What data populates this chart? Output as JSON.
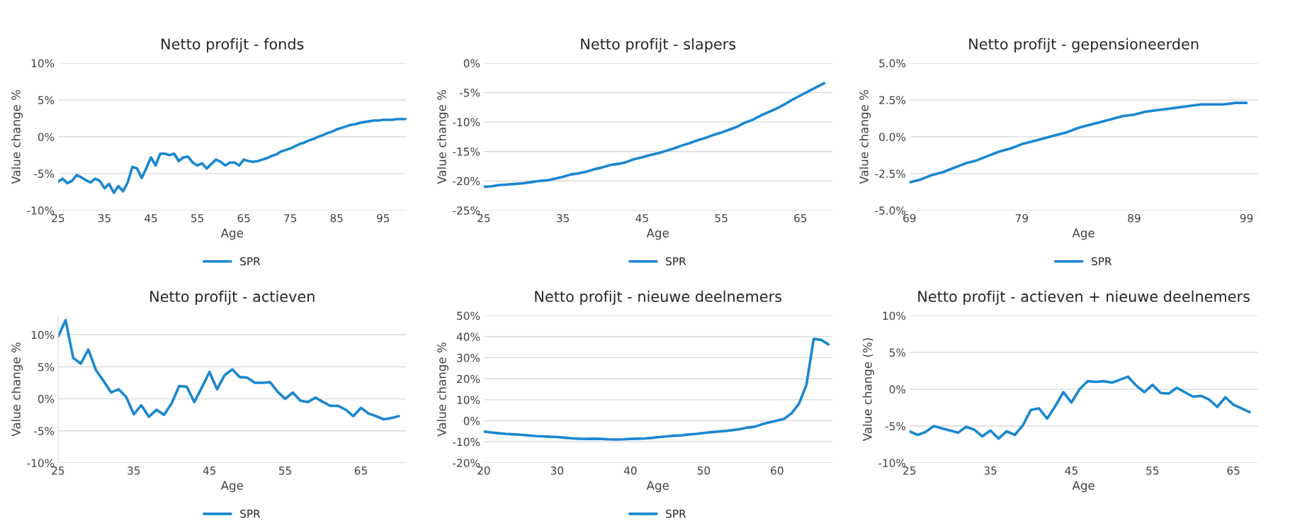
{
  "chart_data": [
    {
      "type": "line",
      "title": "Netto profijt - fonds",
      "xlabel": "Age",
      "ylabel": "Value change %",
      "grid": "y",
      "legend": "bottom",
      "marker": "none",
      "line_style": "solid",
      "xlim": [
        25,
        100
      ],
      "xticks": [
        25,
        35,
        45,
        55,
        65,
        75,
        85,
        95
      ],
      "ylim": [
        -10,
        10
      ],
      "yticks": [
        {
          "value": -10,
          "label": "-10%"
        },
        {
          "value": -5,
          "label": "-5%"
        },
        {
          "value": 0,
          "label": "0%"
        },
        {
          "value": 5,
          "label": "5%"
        },
        {
          "value": 10,
          "label": "10%"
        }
      ],
      "x": [
        25,
        26,
        27,
        28,
        29,
        30,
        31,
        32,
        33,
        34,
        35,
        36,
        37,
        38,
        39,
        40,
        41,
        42,
        43,
        44,
        45,
        46,
        47,
        48,
        49,
        50,
        51,
        52,
        53,
        54,
        55,
        56,
        57,
        58,
        59,
        60,
        61,
        62,
        63,
        64,
        65,
        66,
        67,
        68,
        69,
        70,
        71,
        72,
        73,
        74,
        75,
        76,
        77,
        78,
        79,
        80,
        81,
        82,
        83,
        84,
        85,
        86,
        87,
        88,
        89,
        90,
        91,
        92,
        93,
        94,
        95,
        96,
        97,
        98,
        99,
        100
      ],
      "series": [
        {
          "name": "SPR",
          "color": "#1a87d0",
          "values": [
            -6.1,
            -5.7,
            -6.3,
            -6.0,
            -5.2,
            -5.5,
            -5.9,
            -6.2,
            -5.7,
            -6.0,
            -7.0,
            -6.4,
            -7.6,
            -6.7,
            -7.4,
            -6.2,
            -4.1,
            -4.3,
            -5.6,
            -4.3,
            -2.8,
            -3.9,
            -2.3,
            -2.3,
            -2.5,
            -2.3,
            -3.3,
            -2.8,
            -2.7,
            -3.5,
            -3.9,
            -3.6,
            -4.3,
            -3.7,
            -3.1,
            -3.4,
            -3.9,
            -3.5,
            -3.5,
            -3.9,
            -3.1,
            -3.3,
            -3.4,
            -3.3,
            -3.1,
            -2.9,
            -2.6,
            -2.4,
            -2.0,
            -1.8,
            -1.6,
            -1.3,
            -1.0,
            -0.8,
            -0.5,
            -0.3,
            0.0,
            0.2,
            0.5,
            0.7,
            1.0,
            1.2,
            1.4,
            1.6,
            1.7,
            1.9,
            2.0,
            2.1,
            2.2,
            2.2,
            2.3,
            2.3,
            2.3,
            2.4,
            2.4,
            2.4
          ]
        }
      ]
    },
    {
      "type": "line",
      "title": "Netto profijt - slapers",
      "xlabel": "Age",
      "ylabel": "Value change %",
      "grid": "y",
      "legend": "bottom",
      "marker": "none",
      "line_style": "solid",
      "xlim": [
        25,
        69
      ],
      "xticks": [
        25,
        35,
        45,
        55,
        65
      ],
      "ylim": [
        -25,
        0
      ],
      "yticks": [
        {
          "value": -25,
          "label": "-25%"
        },
        {
          "value": -20,
          "label": "-20%"
        },
        {
          "value": -15,
          "label": "-15%"
        },
        {
          "value": -10,
          "label": "-10%"
        },
        {
          "value": -5,
          "label": "-5%"
        },
        {
          "value": 0,
          "label": "0%"
        }
      ],
      "x": [
        25,
        26,
        27,
        28,
        29,
        30,
        31,
        32,
        33,
        34,
        35,
        36,
        37,
        38,
        39,
        40,
        41,
        42,
        43,
        44,
        45,
        46,
        47,
        48,
        49,
        50,
        51,
        52,
        53,
        54,
        55,
        56,
        57,
        58,
        59,
        60,
        61,
        62,
        63,
        64,
        65,
        66,
        67,
        68
      ],
      "series": [
        {
          "name": "SPR",
          "color": "#1a87d0",
          "values": [
            -21.0,
            -20.9,
            -20.7,
            -20.6,
            -20.5,
            -20.4,
            -20.2,
            -20.0,
            -19.9,
            -19.6,
            -19.3,
            -18.9,
            -18.7,
            -18.4,
            -18.0,
            -17.7,
            -17.3,
            -17.1,
            -16.8,
            -16.3,
            -16.0,
            -15.6,
            -15.3,
            -14.9,
            -14.5,
            -14.0,
            -13.6,
            -13.1,
            -12.7,
            -12.2,
            -11.8,
            -11.3,
            -10.8,
            -10.1,
            -9.6,
            -8.9,
            -8.3,
            -7.7,
            -7.0,
            -6.2,
            -5.5,
            -4.8,
            -4.1,
            -3.4
          ]
        }
      ]
    },
    {
      "type": "line",
      "title": "Netto profijt - gepensioneerden",
      "xlabel": "Age",
      "ylabel": "Value change %",
      "grid": "y",
      "legend": "bottom",
      "marker": "none",
      "line_style": "solid",
      "xlim": [
        69,
        100
      ],
      "xticks": [
        69,
        79,
        89,
        99
      ],
      "ylim": [
        -5,
        5
      ],
      "yticks": [
        {
          "value": -5,
          "label": "-5.0%"
        },
        {
          "value": -2.5,
          "label": "-2.5%"
        },
        {
          "value": 0,
          "label": "0.0%"
        },
        {
          "value": 2.5,
          "label": "2.5%"
        },
        {
          "value": 5,
          "label": "5.0%"
        }
      ],
      "x": [
        69,
        70,
        71,
        72,
        73,
        74,
        75,
        76,
        77,
        78,
        79,
        80,
        81,
        82,
        83,
        84,
        85,
        86,
        87,
        88,
        89,
        90,
        91,
        92,
        93,
        94,
        95,
        96,
        97,
        98,
        99
      ],
      "series": [
        {
          "name": "SPR",
          "color": "#1a87d0",
          "values": [
            -3.1,
            -2.9,
            -2.6,
            -2.4,
            -2.1,
            -1.8,
            -1.6,
            -1.3,
            -1.0,
            -0.8,
            -0.5,
            -0.3,
            -0.1,
            0.1,
            0.3,
            0.6,
            0.8,
            1.0,
            1.2,
            1.4,
            1.5,
            1.7,
            1.8,
            1.9,
            2.0,
            2.1,
            2.2,
            2.2,
            2.2,
            2.3,
            2.3
          ]
        }
      ]
    },
    {
      "type": "line",
      "title": "Netto profijt - actieven",
      "xlabel": "Age",
      "ylabel": "Value change %",
      "grid": "y",
      "legend": "bottom",
      "marker": "none",
      "line_style": "solid",
      "xlim": [
        25,
        71
      ],
      "xticks": [
        25,
        35,
        45,
        55,
        65
      ],
      "ylim": [
        -10,
        13
      ],
      "yticks": [
        {
          "value": -10,
          "label": "-10%"
        },
        {
          "value": -5,
          "label": "-5%"
        },
        {
          "value": 0,
          "label": "0%"
        },
        {
          "value": 5,
          "label": "5%"
        },
        {
          "value": 10,
          "label": "10%"
        }
      ],
      "x": [
        25,
        26,
        27,
        28,
        29,
        30,
        31,
        32,
        33,
        34,
        35,
        36,
        37,
        38,
        39,
        40,
        41,
        42,
        43,
        44,
        45,
        46,
        47,
        48,
        49,
        50,
        51,
        52,
        53,
        54,
        55,
        56,
        57,
        58,
        59,
        60,
        61,
        62,
        63,
        64,
        65,
        66,
        67,
        68,
        69,
        70
      ],
      "series": [
        {
          "name": "SPR",
          "color": "#1a87d0",
          "values": [
            9.7,
            12.3,
            6.4,
            5.5,
            7.7,
            4.5,
            2.8,
            1.0,
            1.5,
            0.3,
            -2.4,
            -1.0,
            -2.8,
            -1.7,
            -2.5,
            -0.7,
            2.0,
            1.9,
            -0.5,
            1.8,
            4.2,
            1.5,
            3.7,
            4.6,
            3.4,
            3.3,
            2.5,
            2.5,
            2.6,
            1.1,
            0.0,
            1.0,
            -0.3,
            -0.5,
            0.2,
            -0.5,
            -1.1,
            -1.1,
            -1.7,
            -2.7,
            -1.4,
            -2.3,
            -2.7,
            -3.2,
            -3.0,
            -2.7
          ]
        }
      ]
    },
    {
      "type": "line",
      "title": "Netto profijt - nieuwe deelnemers",
      "xlabel": "Age",
      "ylabel": "Value change %",
      "grid": "y",
      "legend": "bottom",
      "marker": "none",
      "line_style": "solid",
      "xlim": [
        20,
        67.5
      ],
      "xticks": [
        20,
        30,
        40,
        50,
        60
      ],
      "ylim": [
        -20,
        50
      ],
      "yticks": [
        {
          "value": -20,
          "label": "-20%"
        },
        {
          "value": -10,
          "label": "-10%"
        },
        {
          "value": 0,
          "label": "0%"
        },
        {
          "value": 10,
          "label": "10%"
        },
        {
          "value": 20,
          "label": "20%"
        },
        {
          "value": 30,
          "label": "30%"
        },
        {
          "value": 40,
          "label": "40%"
        },
        {
          "value": 50,
          "label": "50%"
        }
      ],
      "x": [
        20,
        21,
        22,
        23,
        24,
        25,
        26,
        27,
        28,
        29,
        30,
        31,
        32,
        33,
        34,
        35,
        36,
        37,
        38,
        39,
        40,
        41,
        42,
        43,
        44,
        45,
        46,
        47,
        48,
        49,
        50,
        51,
        52,
        53,
        54,
        55,
        56,
        57,
        58,
        59,
        60,
        61,
        62,
        63,
        64,
        65,
        66,
        67
      ],
      "series": [
        {
          "name": "SPR",
          "color": "#1a87d0",
          "values": [
            -5.1,
            -5.5,
            -5.9,
            -6.2,
            -6.4,
            -6.6,
            -6.9,
            -7.2,
            -7.4,
            -7.6,
            -7.7,
            -8.0,
            -8.3,
            -8.5,
            -8.6,
            -8.5,
            -8.6,
            -8.8,
            -8.9,
            -8.8,
            -8.6,
            -8.5,
            -8.4,
            -8.1,
            -7.7,
            -7.4,
            -7.1,
            -6.9,
            -6.5,
            -6.2,
            -5.8,
            -5.4,
            -5.1,
            -4.8,
            -4.4,
            -3.9,
            -3.2,
            -2.8,
            -1.6,
            -0.7,
            0.1,
            1.0,
            3.6,
            8.2,
            17.0,
            38.9,
            38.5,
            36.3
          ]
        }
      ]
    },
    {
      "type": "line",
      "title": "Netto profijt - actieven + nieuwe deelnemers",
      "xlabel": "Age",
      "ylabel": "Value change (%)",
      "grid": "y",
      "marker": "none",
      "line_style": "solid",
      "xlim": [
        25,
        68
      ],
      "xticks": [
        25,
        35,
        45,
        55,
        65
      ],
      "ylim": [
        -10,
        10
      ],
      "yticks": [
        {
          "value": -10,
          "label": "-10%"
        },
        {
          "value": -5,
          "label": "-5%"
        },
        {
          "value": 0,
          "label": "0%"
        },
        {
          "value": 5,
          "label": "5%"
        },
        {
          "value": 10,
          "label": "10%"
        }
      ],
      "x": [
        25,
        26,
        27,
        28,
        29,
        30,
        31,
        32,
        33,
        34,
        35,
        36,
        37,
        38,
        39,
        40,
        41,
        42,
        43,
        44,
        45,
        46,
        47,
        48,
        49,
        50,
        51,
        52,
        53,
        54,
        55,
        56,
        57,
        58,
        59,
        60,
        61,
        62,
        63,
        64,
        65,
        66,
        67
      ],
      "series": [
        {
          "color": "#1a87d0",
          "values": [
            -5.7,
            -6.2,
            -5.8,
            -5.0,
            -5.3,
            -5.6,
            -5.9,
            -5.1,
            -5.5,
            -6.4,
            -5.6,
            -6.7,
            -5.7,
            -6.2,
            -4.9,
            -2.8,
            -2.6,
            -4.0,
            -2.3,
            -0.4,
            -1.8,
            0.0,
            1.1,
            1.0,
            1.1,
            0.9,
            1.3,
            1.7,
            0.5,
            -0.4,
            0.6,
            -0.5,
            -0.6,
            0.2,
            -0.4,
            -1.0,
            -0.9,
            -1.4,
            -2.4,
            -1.1,
            -2.1,
            -2.6,
            -3.1
          ]
        }
      ]
    }
  ]
}
